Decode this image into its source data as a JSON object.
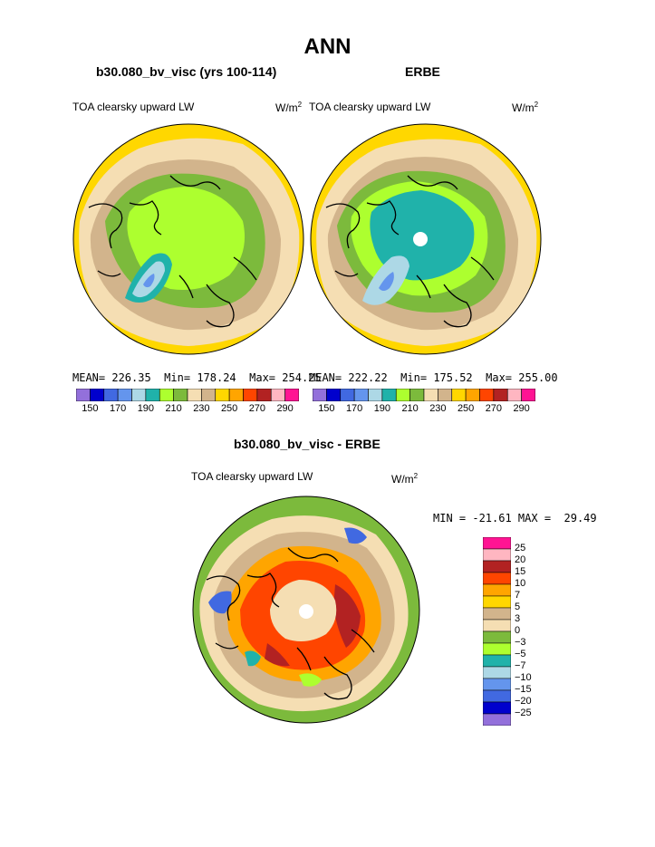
{
  "page_title": "ANN",
  "colors": {
    "palette": [
      "#9370db",
      "#0000cd",
      "#4169e1",
      "#6495ed",
      "#add8e6",
      "#20b2aa",
      "#adff2f",
      "#7cba3c",
      "#f5deb3",
      "#d2b48c",
      "#ffd700",
      "#ffa500",
      "#ff4500",
      "#b22222",
      "#ffb6c1",
      "#ff1493"
    ],
    "coast": "#000000"
  },
  "chart_data": [
    {
      "type": "polar-contour-map",
      "title": "b30.080_bv_visc (yrs 100-114)",
      "variable": "TOA clearsky upward LW",
      "units": "W/m",
      "units_exp": "2",
      "stats": {
        "mean_label": "MEAN=",
        "mean": "226.35",
        "min_label": "Min=",
        "min": "178.24",
        "max_label": "Max=",
        "max": "254.25"
      },
      "colorbar_labels": [
        "150",
        "170",
        "190",
        "210",
        "230",
        "250",
        "270",
        "290"
      ]
    },
    {
      "type": "polar-contour-map",
      "title": "ERBE",
      "variable": "TOA clearsky upward LW",
      "units": "W/m",
      "units_exp": "2",
      "stats": {
        "mean_label": "MEAN=",
        "mean": "222.22",
        "min_label": "Min=",
        "min": "175.52",
        "max_label": "Max=",
        "max": "255.00"
      },
      "colorbar_labels": [
        "150",
        "170",
        "190",
        "210",
        "230",
        "250",
        "270",
        "290"
      ]
    },
    {
      "type": "polar-contour-map",
      "title": "b30.080_bv_visc - ERBE",
      "variable": "TOA clearsky upward LW",
      "units": "W/m",
      "units_exp": "2",
      "stats": {
        "text": "MIN = -21.61 MAX =  29.49",
        "min": -21.61,
        "max": 29.49
      },
      "colorbar_labels": [
        "25",
        "20",
        "15",
        "10",
        "7",
        "5",
        "3",
        "0",
        "−3",
        "−5",
        "−7",
        "−10",
        "−15",
        "−20",
        "−25"
      ],
      "colorbar_colors": [
        "#ff1493",
        "#ffb6c1",
        "#b22222",
        "#ff4500",
        "#ffa500",
        "#ffd700",
        "#d2b48c",
        "#f5deb3",
        "#7cba3c",
        "#adff2f",
        "#20b2aa",
        "#add8e6",
        "#6495ed",
        "#4169e1",
        "#0000cd",
        "#9370db"
      ]
    }
  ]
}
